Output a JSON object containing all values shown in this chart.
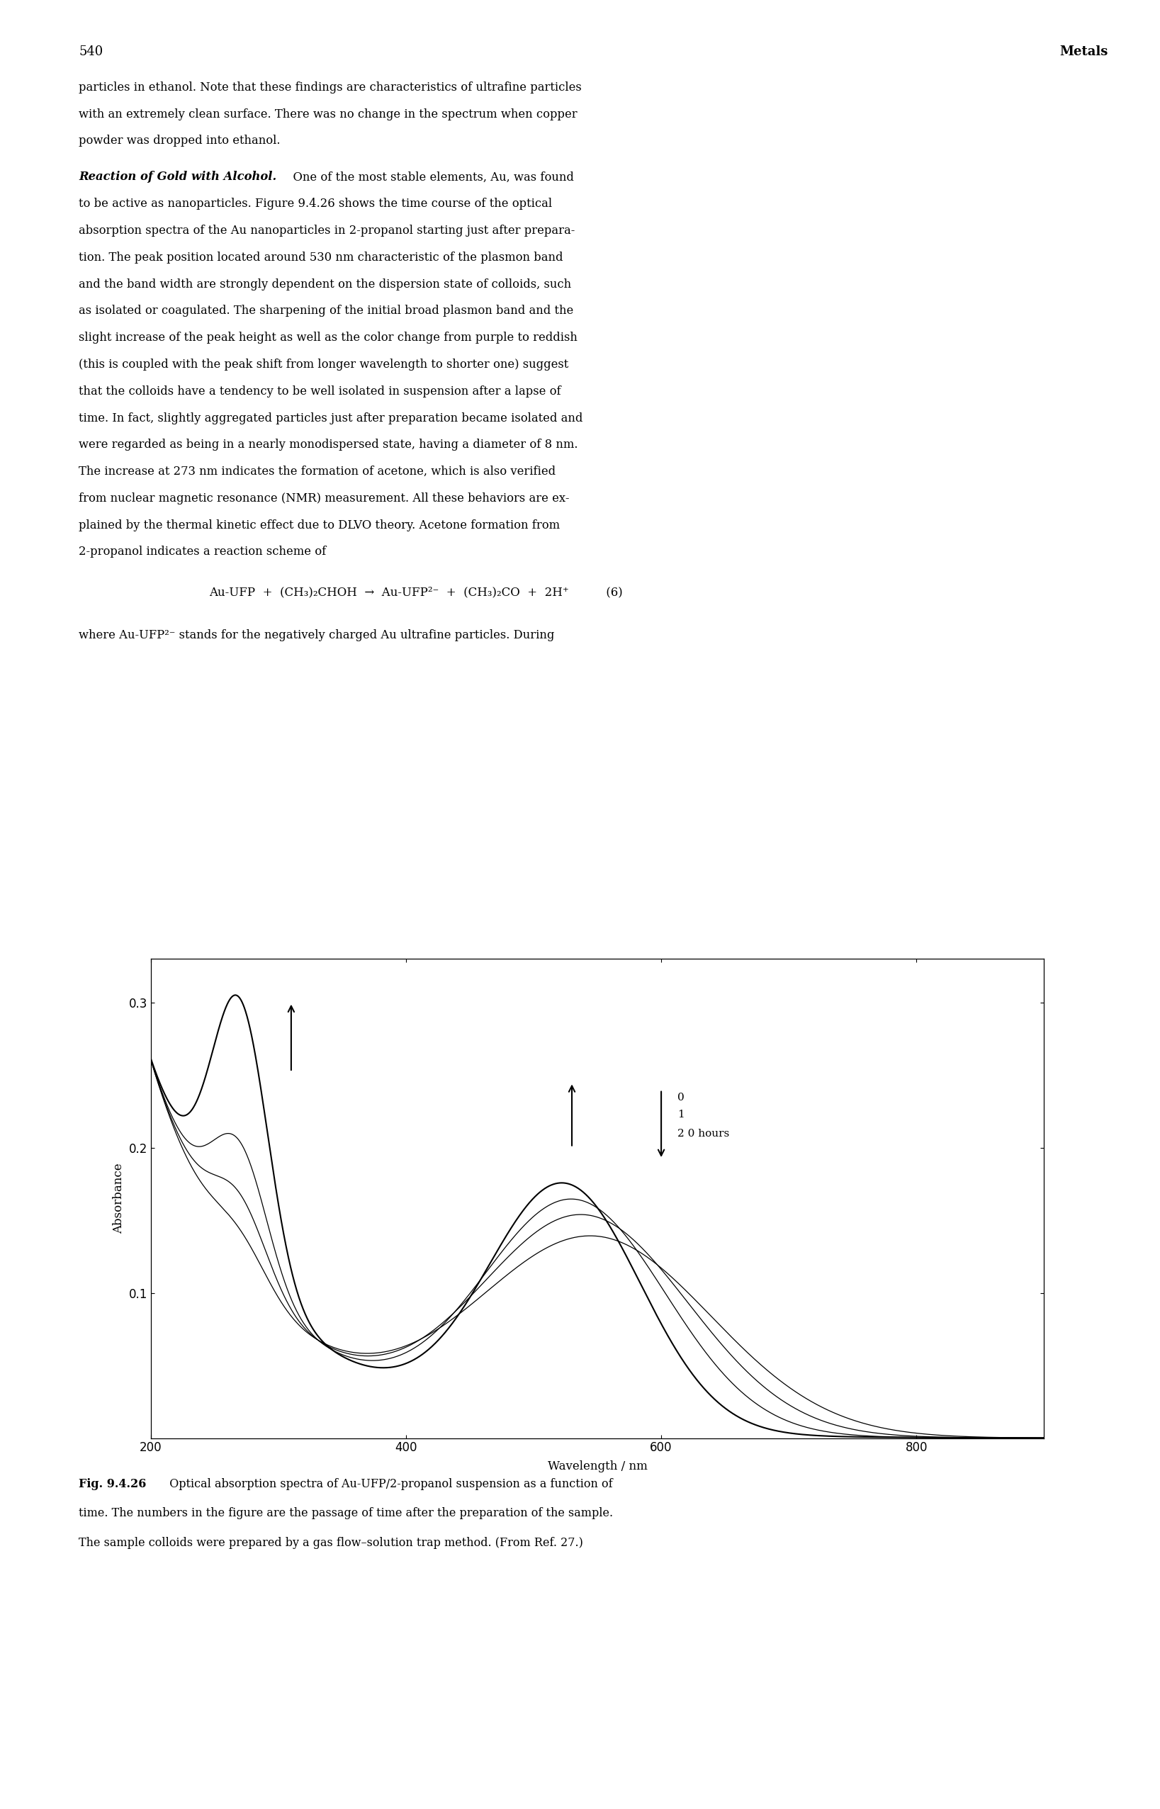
{
  "page_number": "540",
  "page_right_header": "Metals",
  "xlim": [
    200,
    900
  ],
  "ylim": [
    0,
    0.33
  ],
  "yticks": [
    0.1,
    0.2,
    0.3
  ],
  "xticks": [
    200,
    400,
    600,
    800
  ],
  "xlabel": "Wavelength / nm",
  "ylabel": "Absorbance",
  "background_color": "#ffffff",
  "body_lines": [
    "particles in ethanol. Note that these findings are characteristics of ultrafine particles",
    "with an extremely clean surface. There was no change in the spectrum when copper",
    "powder was dropped into ethanol."
  ],
  "para2_italic": "Reaction of Gold with Alcohol.",
  "para2_rest": "  One of the most stable elements, Au, was found",
  "para2_lines": [
    "to be active as nanoparticles. Figure 9.4.26 shows the time course of the optical",
    "absorption spectra of the Au nanoparticles in 2-propanol starting just after prepara-",
    "tion. The peak position located around 530 nm characteristic of the plasmon band",
    "and the band width are strongly dependent on the dispersion state of colloids, such",
    "as isolated or coagulated. The sharpening of the initial broad plasmon band and the",
    "slight increase of the peak height as well as the color change from purple to reddish",
    "(this is coupled with the peak shift from longer wavelength to shorter one) suggest",
    "that the colloids have a tendency to be well isolated in suspension after a lapse of",
    "time. In fact, slightly aggregated particles just after preparation became isolated and",
    "were regarded as being in a nearly monodispersed state, having a diameter of 8 nm.",
    "The increase at 273 nm indicates the formation of acetone, which is also verified",
    "from nuclear magnetic resonance (NMR) measurement. All these behaviors are ex-",
    "plained by the thermal kinetic effect due to DLVO theory. Acetone formation from",
    "2-propanol indicates a reaction scheme of"
  ],
  "equation": "Au-UFP  +  (CH₃)₂CHOH  →  Au-UFP²⁻  +  (CH₃)₂CO  +  2H⁺          (6)",
  "where_line": "where Au-UFP²⁻ stands for the negatively charged Au ultrafine particles. During",
  "caption_bold": "Fig. 9.4.26",
  "caption_lines": [
    "  Optical absorption spectra of Au-UFP/2-propanol suspension as a function of",
    "time. The numbers in the figure are the passage of time after the preparation of the sample.",
    "The sample colloids were prepared by a gas flow–solution trap method. (From Ref. 27.)"
  ]
}
